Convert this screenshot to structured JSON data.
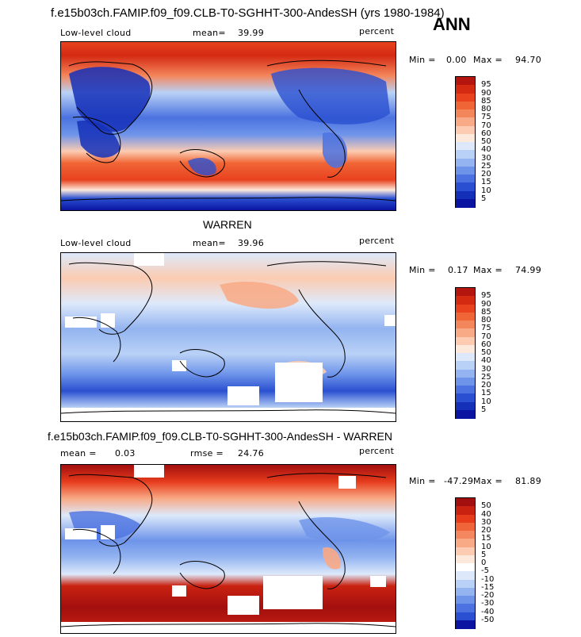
{
  "header": {
    "title": "f.e15b03ch.FAMIP.f09_f09.CLB-T0-SGHHT-300-AndesSH (yrs 1980-1984)",
    "season": "ANN"
  },
  "panels": [
    {
      "id": "model",
      "left_label": "Low-level cloud",
      "stat_label": "mean=",
      "stat_value": "39.99",
      "units": "percent",
      "min_label": "Min =",
      "min_value": "0.00",
      "max_label": "Max =",
      "max_value": "94.70"
    },
    {
      "id": "obs",
      "title": "WARREN",
      "left_label": "Low-level cloud",
      "stat_label": "mean=",
      "stat_value": "39.96",
      "units": "percent",
      "min_label": "Min =",
      "min_value": "0.17",
      "max_label": "Max =",
      "max_value": "74.99"
    },
    {
      "id": "diff",
      "title": "f.e15b03ch.FAMIP.f09_f09.CLB-T0-SGHHT-300-AndesSH - WARREN",
      "stat_label": "mean =",
      "stat_value": "0.03",
      "rmse_label": "rmse =",
      "rmse_value": "24.76",
      "units": "percent",
      "min_label": "Min =",
      "min_value": "-47.29",
      "max_label": "Max =",
      "max_value": "81.89"
    }
  ],
  "colorbars": {
    "abs_levels": [
      "95",
      "90",
      "85",
      "80",
      "75",
      "70",
      "60",
      "50",
      "40",
      "30",
      "25",
      "20",
      "15",
      "10",
      "5"
    ],
    "abs_colors": [
      "#b5150f",
      "#d42a12",
      "#e8421f",
      "#f06535",
      "#f4865b",
      "#f8a985",
      "#fccbb1",
      "#fde9dc",
      "#dde9fb",
      "#b9d1f6",
      "#93b4f0",
      "#6e94ea",
      "#4b72e0",
      "#2a50d1",
      "#1530b8",
      "#0a14a0"
    ],
    "diff_levels": [
      "50",
      "40",
      "30",
      "20",
      "15",
      "10",
      "5",
      "0",
      "-5",
      "-10",
      "-15",
      "-20",
      "-30",
      "-40",
      "-50"
    ],
    "diff_colors": [
      "#a30f0f",
      "#c92210",
      "#e63c1c",
      "#f0643a",
      "#f4875f",
      "#f8a985",
      "#fccbb1",
      "#fde9dc",
      "#ffffff",
      "#dde9fb",
      "#b9d1f6",
      "#93b4f0",
      "#6e94ea",
      "#4b72e0",
      "#2a50d1",
      "#0a14a0"
    ]
  }
}
